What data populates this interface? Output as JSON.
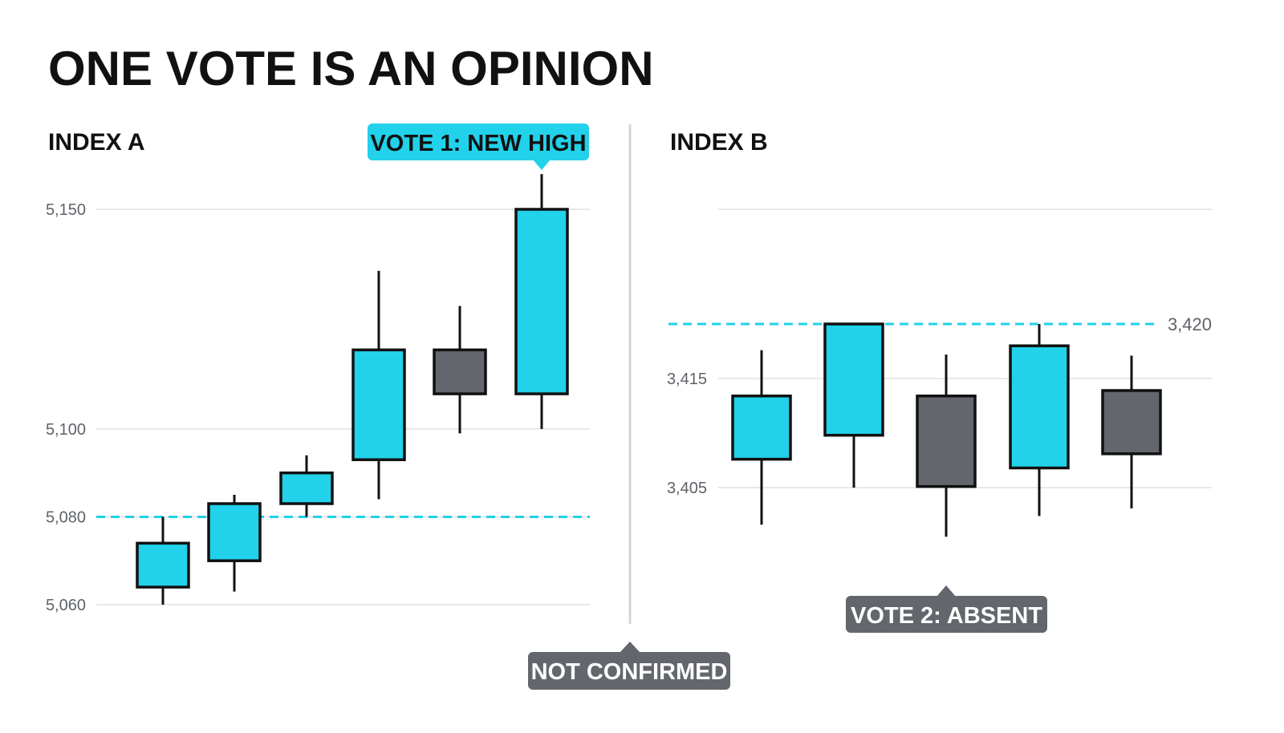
{
  "title": "ONE VOTE IS AN OPINION",
  "colors": {
    "up": "#22d1ea",
    "down": "#63666c",
    "outline": "#111111",
    "grid": "#e0e0e0",
    "divider": "#d6d6d6",
    "reference_line": "#22d1ea",
    "callout_cyan": "#22d1ea",
    "callout_gray": "#63666c"
  },
  "chart_data": [
    {
      "type": "candlestick",
      "title": "INDEX A",
      "ylim": [
        5057,
        5160
      ],
      "yticks": [
        5060,
        5080,
        5100,
        5150
      ],
      "ytick_labels": [
        "5,060",
        "5,080",
        "5,100",
        "5,150"
      ],
      "grid": true,
      "reference_line": {
        "value": 5080,
        "style": "dashed"
      },
      "candles": [
        {
          "open": 5064,
          "high": 5080,
          "low": 5060,
          "close": 5074,
          "direction": "up"
        },
        {
          "open": 5070,
          "high": 5085,
          "low": 5063,
          "close": 5083,
          "direction": "up"
        },
        {
          "open": 5083,
          "high": 5094,
          "low": 5080,
          "close": 5090,
          "direction": "up"
        },
        {
          "open": 5093,
          "high": 5136,
          "low": 5084,
          "close": 5118,
          "direction": "up"
        },
        {
          "open": 5118,
          "high": 5128,
          "low": 5099,
          "close": 5108,
          "direction": "down"
        },
        {
          "open": 5108,
          "high": 5158,
          "low": 5100,
          "close": 5150,
          "direction": "up"
        }
      ],
      "callout": {
        "text": "VOTE 1: NEW HIGH",
        "target_candle": 5
      }
    },
    {
      "type": "candlestick",
      "title": "INDEX B",
      "ylim": [
        3401,
        3423
      ],
      "yticks": [
        3405,
        3415
      ],
      "ytick_labels": [
        "3,405",
        "3,415"
      ],
      "grid": true,
      "reference_line": {
        "value": 3420,
        "label": "3,420",
        "style": "dashed"
      },
      "candles": [
        {
          "open": 3407.6,
          "high": 3417.6,
          "low": 3401.6,
          "close": 3413.4,
          "direction": "up"
        },
        {
          "open": 3409.8,
          "high": 3420.0,
          "low": 3405.0,
          "close": 3420.0,
          "direction": "up"
        },
        {
          "open": 3413.4,
          "high": 3417.2,
          "low": 3400.5,
          "close": 3405.1,
          "direction": "down"
        },
        {
          "open": 3406.8,
          "high": 3420.0,
          "low": 3402.4,
          "close": 3418.0,
          "direction": "up"
        },
        {
          "open": 3413.9,
          "high": 3417.1,
          "low": 3403.1,
          "close": 3408.1,
          "direction": "down"
        }
      ],
      "callout": {
        "text": "VOTE 2: ABSENT",
        "target_candle": 2
      }
    }
  ],
  "footer_callout": {
    "text": "NOT CONFIRMED"
  }
}
